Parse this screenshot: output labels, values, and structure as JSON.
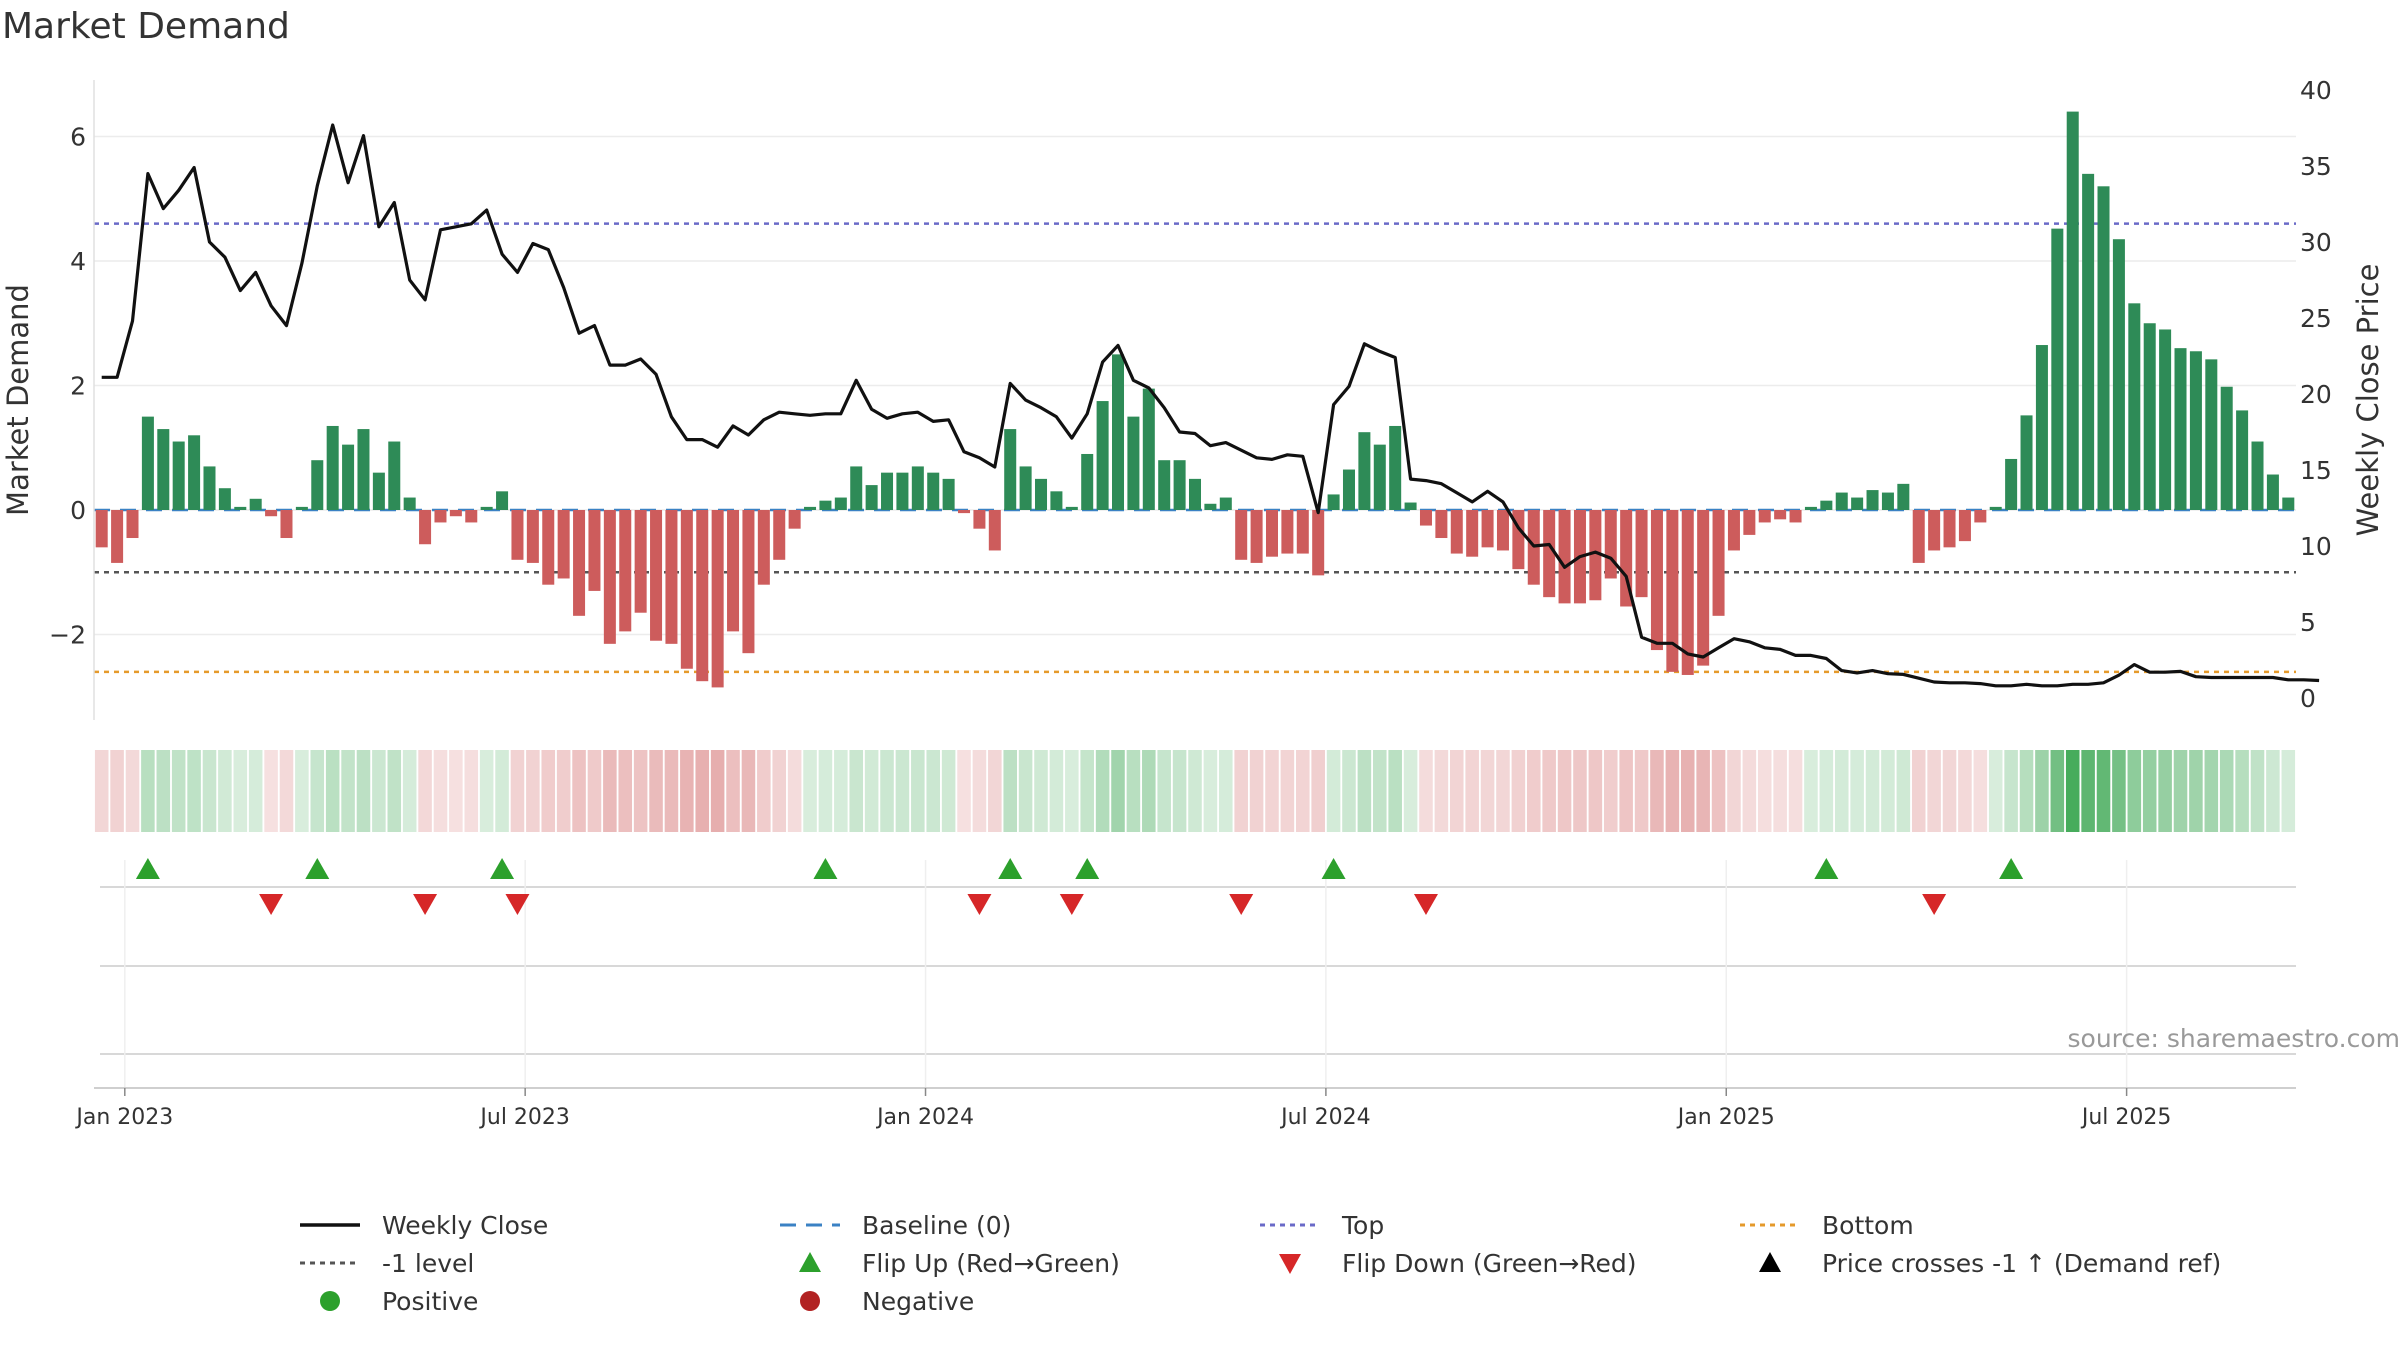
{
  "title": "Market Demand",
  "source": "source: sharemaestro.com",
  "colors": {
    "positive": "#2e8b57",
    "negative": "#cd5c5c",
    "close": "#111111",
    "baseline": "#3b82c4",
    "top": "#6a6ac8",
    "bottom": "#e59a2b",
    "minus1": "#555555",
    "flip_up": "#2ca02c",
    "flip_down": "#d62728"
  },
  "chart_data": {
    "type": "bar",
    "title": "Market Demand",
    "ylabel_left": "Market Demand",
    "ylabel_right": "Weekly Close Price",
    "ylim_left": [
      -3,
      7
    ],
    "ylim_right": [
      0,
      40
    ],
    "left_ticks": [
      "6",
      "4",
      "2",
      "0",
      "−2"
    ],
    "left_tick_values": [
      6,
      4,
      2,
      0,
      -2
    ],
    "right_ticks": [
      "40",
      "35",
      "30",
      "25",
      "20",
      "15",
      "10",
      "5",
      "0"
    ],
    "right_tick_values": [
      40,
      35,
      30,
      25,
      20,
      15,
      10,
      5,
      0
    ],
    "x_ticks": [
      {
        "label": "Jan 2023",
        "week": 1.5
      },
      {
        "label": "Jul 2023",
        "week": 27.5
      },
      {
        "label": "Jan 2024",
        "week": 53.5
      },
      {
        "label": "Jul 2024",
        "week": 79.5
      },
      {
        "label": "Jan 2025",
        "week": 105.5
      },
      {
        "label": "Jul 2025",
        "week": 131.5
      }
    ],
    "reference_lines": {
      "top": 4.6,
      "minus1": -1,
      "bottom": -2.6,
      "baseline": 0
    },
    "demand": [
      -0.6,
      -0.85,
      -0.45,
      1.5,
      1.3,
      1.1,
      1.2,
      0.7,
      0.35,
      0.05,
      0.18,
      -0.1,
      -0.45,
      0.05,
      0.8,
      1.35,
      1.05,
      1.3,
      0.6,
      1.1,
      0.2,
      -0.55,
      -0.2,
      -0.1,
      -0.2,
      0.05,
      0.3,
      -0.8,
      -0.85,
      -1.2,
      -1.1,
      -1.7,
      -1.3,
      -2.15,
      -1.95,
      -1.65,
      -2.1,
      -2.15,
      -2.55,
      -2.75,
      -2.85,
      -1.95,
      -2.3,
      -1.2,
      -0.8,
      -0.3,
      0.05,
      0.15,
      0.2,
      0.7,
      0.4,
      0.6,
      0.6,
      0.7,
      0.6,
      0.5,
      -0.05,
      -0.3,
      -0.65,
      1.3,
      0.7,
      0.5,
      0.3,
      0.05,
      0.9,
      1.75,
      2.5,
      1.5,
      1.95,
      0.8,
      0.8,
      0.5,
      0.1,
      0.2,
      -0.8,
      -0.85,
      -0.75,
      -0.7,
      -0.7,
      -1.05,
      0.25,
      0.65,
      1.25,
      1.05,
      1.35,
      0.12,
      -0.25,
      -0.45,
      -0.7,
      -0.75,
      -0.6,
      -0.65,
      -0.95,
      -1.2,
      -1.4,
      -1.5,
      -1.5,
      -1.45,
      -1.1,
      -1.55,
      -1.4,
      -2.25,
      -2.6,
      -2.65,
      -2.5,
      -1.7,
      -0.65,
      -0.4,
      -0.2,
      -0.15,
      -0.2,
      0.05,
      0.15,
      0.28,
      0.2,
      0.32,
      0.28,
      0.42,
      -0.85,
      -0.65,
      -0.6,
      -0.5,
      -0.2,
      0.05,
      0.82,
      1.52,
      2.65,
      4.52,
      6.4,
      5.4,
      5.2,
      4.35,
      3.32,
      3.0,
      2.9,
      2.6,
      2.55,
      2.42,
      1.98,
      1.6,
      1.1,
      0.57,
      0.2
    ],
    "close": [
      21.1,
      21.1,
      24.8,
      34.5,
      32.2,
      33.4,
      34.9,
      30.0,
      29.0,
      26.8,
      28.0,
      25.8,
      24.5,
      28.6,
      33.7,
      37.7,
      33.9,
      37.0,
      31.0,
      32.6,
      27.5,
      26.2,
      30.8,
      31.0,
      31.2,
      32.1,
      29.2,
      28.0,
      29.9,
      29.5,
      27.0,
      24.0,
      24.5,
      21.9,
      21.9,
      22.3,
      21.3,
      18.5,
      17.0,
      17.0,
      16.5,
      17.9,
      17.3,
      18.3,
      18.8,
      18.7,
      18.6,
      18.7,
      18.7,
      20.9,
      19.0,
      18.4,
      18.7,
      18.8,
      18.2,
      18.3,
      16.2,
      15.8,
      15.2,
      20.7,
      19.6,
      19.1,
      18.5,
      17.1,
      18.7,
      22.1,
      23.2,
      20.9,
      20.4,
      19.1,
      17.5,
      17.4,
      16.6,
      16.8,
      16.3,
      15.8,
      15.7,
      16.0,
      15.9,
      12.2,
      19.3,
      20.5,
      23.3,
      22.8,
      22.4,
      14.4,
      14.3,
      14.1,
      13.5,
      12.9,
      13.6,
      12.9,
      11.2,
      10.0,
      10.1,
      8.6,
      9.3,
      9.6,
      9.2,
      8.0,
      4.0,
      3.6,
      3.6,
      2.9,
      2.7,
      3.3,
      3.9,
      3.7,
      3.3,
      3.2,
      2.8,
      2.8,
      2.6,
      1.8,
      1.65,
      1.8,
      1.6,
      1.55,
      1.3,
      1.05,
      1.0,
      1.0,
      0.95,
      0.8,
      0.8,
      0.9,
      0.8,
      0.8,
      0.9,
      0.9,
      1.0,
      1.5,
      2.2,
      1.7,
      1.7,
      1.75,
      1.4,
      1.35,
      1.35,
      1.35,
      1.35,
      1.35,
      1.2,
      1.2,
      1.15
    ],
    "flip_up_weeks": [
      3,
      14,
      26,
      47,
      59,
      64,
      80,
      112,
      124
    ],
    "flip_down_weeks": [
      11,
      21,
      27,
      57,
      63,
      74,
      86,
      119
    ]
  },
  "legend": [
    {
      "label": "Weekly Close",
      "symbol": "line-solid",
      "color": "#111111"
    },
    {
      "label": "Baseline (0)",
      "symbol": "line-dashed",
      "color": "#3b82c4"
    },
    {
      "label": "Top",
      "symbol": "line-dotted",
      "color": "#6a6ac8"
    },
    {
      "label": "Bottom",
      "symbol": "line-dotted",
      "color": "#e59a2b"
    },
    {
      "label": "-1 level",
      "symbol": "line-dotted",
      "color": "#555555"
    },
    {
      "label": "Flip Up (Red→Green)",
      "symbol": "triangle-up",
      "color": "#2ca02c"
    },
    {
      "label": "Flip Down (Green→Red)",
      "symbol": "triangle-down",
      "color": "#d62728"
    },
    {
      "label": "Price crosses -1 ↑ (Demand ref)",
      "symbol": "triangle-up",
      "color": "#000000"
    },
    {
      "label": "Positive",
      "symbol": "circle",
      "color": "#2ca02c"
    },
    {
      "label": "Negative",
      "symbol": "circle",
      "color": "#b22222"
    }
  ]
}
